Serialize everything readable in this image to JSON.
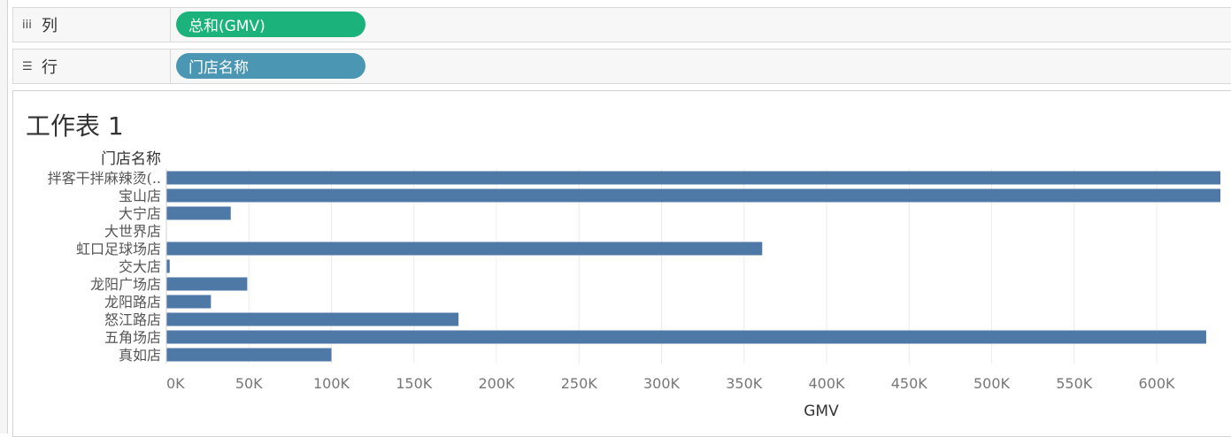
{
  "shelves": {
    "columns": {
      "icon": "columns-icon",
      "label": "列",
      "pill": "总和(GMV)",
      "pill_color": "#1bb27b"
    },
    "rows": {
      "icon": "rows-icon",
      "label": "行",
      "pill": "门店名称",
      "pill_color": "#4a96b3"
    }
  },
  "sheet": {
    "title": "工作表 1"
  },
  "chart_data": {
    "type": "bar",
    "orientation": "horizontal",
    "row_header": "门店名称",
    "categories": [
      "拌客干拌麻辣烫(..",
      "宝山店",
      "大宁店",
      "大世界店",
      "虹口足球场店",
      "交大店",
      "龙阳广场店",
      "龙阳路店",
      "怒江路店",
      "五角场店",
      "真如店"
    ],
    "values": [
      650000,
      650000,
      39000,
      0,
      361000,
      2000,
      49000,
      27000,
      177000,
      630000,
      100000
    ],
    "xlabel": "GMV",
    "xlim": [
      0,
      640000
    ],
    "ticks": [
      "0K",
      "50K",
      "100K",
      "150K",
      "200K",
      "250K",
      "300K",
      "350K",
      "400K",
      "450K",
      "500K",
      "550K",
      "600K"
    ],
    "tick_values": [
      0,
      50000,
      100000,
      150000,
      200000,
      250000,
      300000,
      350000,
      400000,
      450000,
      500000,
      550000,
      600000
    ],
    "bar_color": "#4e79a7",
    "grid": true
  }
}
